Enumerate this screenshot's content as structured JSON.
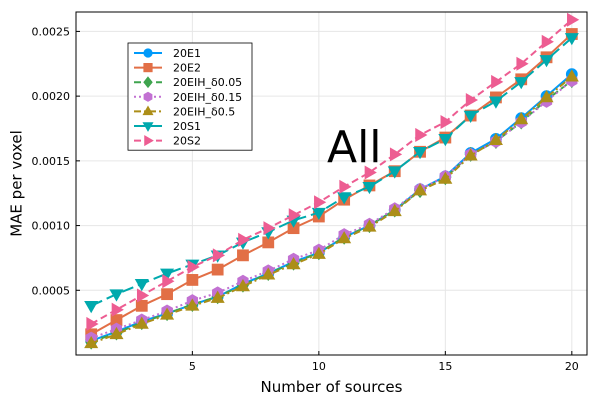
{
  "chart_data": {
    "type": "line",
    "title": "",
    "xlabel": "Number of sources",
    "ylabel": "MAE per voxel",
    "annotation": "All",
    "xlim": [
      0.4,
      20.6
    ],
    "ylim": [
      0.0,
      0.00265
    ],
    "x_ticks": [
      5,
      10,
      15,
      20
    ],
    "x_tick_labels": [
      "5",
      "10",
      "15",
      "20"
    ],
    "y_ticks": [
      0.0005,
      0.001,
      0.0015,
      0.002,
      0.0025
    ],
    "y_tick_labels": [
      "0.0005",
      "0.0010",
      "0.0015",
      "0.0020",
      "0.0025"
    ],
    "grid": true,
    "legend_position": "top-left",
    "x": [
      1,
      2,
      3,
      4,
      5,
      6,
      7,
      8,
      9,
      10,
      11,
      12,
      13,
      14,
      15,
      16,
      17,
      18,
      19,
      20
    ],
    "series": [
      {
        "name": "20E1",
        "color": "#009AFA",
        "marker": "circle",
        "dash": "solid",
        "values": [
          0.00011,
          0.00018,
          0.00026,
          0.00032,
          0.00039,
          0.00045,
          0.00055,
          0.00063,
          0.00072,
          0.00079,
          0.00091,
          0.001,
          0.00112,
          0.00128,
          0.00138,
          0.00156,
          0.00167,
          0.00183,
          0.002,
          0.00217
        ]
      },
      {
        "name": "20E2",
        "color": "#E26F46",
        "marker": "square",
        "dash": "solid",
        "values": [
          0.00016,
          0.00027,
          0.00038,
          0.00047,
          0.00058,
          0.00066,
          0.00077,
          0.00087,
          0.00098,
          0.00107,
          0.0012,
          0.00131,
          0.00142,
          0.00157,
          0.00168,
          0.00185,
          0.00199,
          0.00213,
          0.0023,
          0.00248
        ]
      },
      {
        "name": "20EIH_δ0.05",
        "color": "#3EA44E",
        "marker": "diamond",
        "dash": "dashed",
        "values": [
          0.0001,
          0.00017,
          0.00025,
          0.00032,
          0.00039,
          0.00045,
          0.00054,
          0.00063,
          0.00071,
          0.00079,
          0.00091,
          0.001,
          0.00112,
          0.00127,
          0.00137,
          0.00155,
          0.00165,
          0.0018,
          0.00197,
          0.00212
        ]
      },
      {
        "name": "20EIH_δ0.15",
        "color": "#C271D2",
        "marker": "hexagon",
        "dash": "dotted",
        "values": [
          0.00013,
          0.0002,
          0.00027,
          0.00034,
          0.00042,
          0.00048,
          0.00057,
          0.00065,
          0.00074,
          0.00081,
          0.00093,
          0.00101,
          0.00113,
          0.00128,
          0.00138,
          0.00155,
          0.00165,
          0.0018,
          0.00196,
          0.00212
        ]
      },
      {
        "name": "20EIH_δ0.5",
        "color": "#AC8E18",
        "marker": "triangle-up",
        "dash": "dashdot",
        "values": [
          9e-05,
          0.00016,
          0.00024,
          0.00031,
          0.00038,
          0.00044,
          0.00053,
          0.00062,
          0.0007,
          0.00078,
          0.0009,
          0.00099,
          0.00111,
          0.00127,
          0.00136,
          0.00154,
          0.00166,
          0.00182,
          0.00199,
          0.00215
        ]
      },
      {
        "name": "20S1",
        "color": "#00A9AD",
        "marker": "triangle-down",
        "dash": "longdash",
        "values": [
          0.00038,
          0.00047,
          0.00055,
          0.00063,
          0.0007,
          0.00077,
          0.00087,
          0.00095,
          0.00104,
          0.0011,
          0.00122,
          0.0013,
          0.00142,
          0.00157,
          0.00167,
          0.00185,
          0.00196,
          0.00211,
          0.00228,
          0.00245
        ]
      },
      {
        "name": "20S2",
        "color": "#ED5D92",
        "marker": "triangle-right",
        "dash": "dashed",
        "values": [
          0.00024,
          0.00035,
          0.00046,
          0.00057,
          0.00068,
          0.00077,
          0.00089,
          0.00098,
          0.00108,
          0.00118,
          0.0013,
          0.00141,
          0.00155,
          0.0017,
          0.0018,
          0.00197,
          0.00211,
          0.00225,
          0.00242,
          0.00259
        ]
      }
    ]
  }
}
